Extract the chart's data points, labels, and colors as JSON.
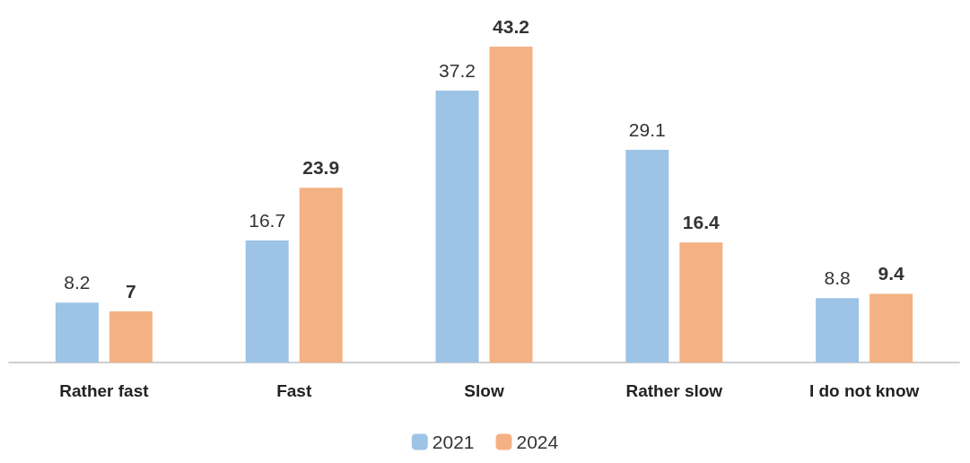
{
  "chart_data": {
    "type": "bar",
    "categories": [
      "Rather fast",
      "Fast",
      "Slow",
      "Rather slow",
      "I do not know"
    ],
    "series": [
      {
        "name": "2021",
        "color": "#9dc3e6",
        "values": [
          8.2,
          16.7,
          37.2,
          29.1,
          8.8
        ]
      },
      {
        "name": "2024",
        "color": "#f4b183",
        "values": [
          7,
          23.9,
          43.2,
          16.4,
          9.4
        ]
      }
    ],
    "data_labels": true,
    "legend": "bottom"
  }
}
